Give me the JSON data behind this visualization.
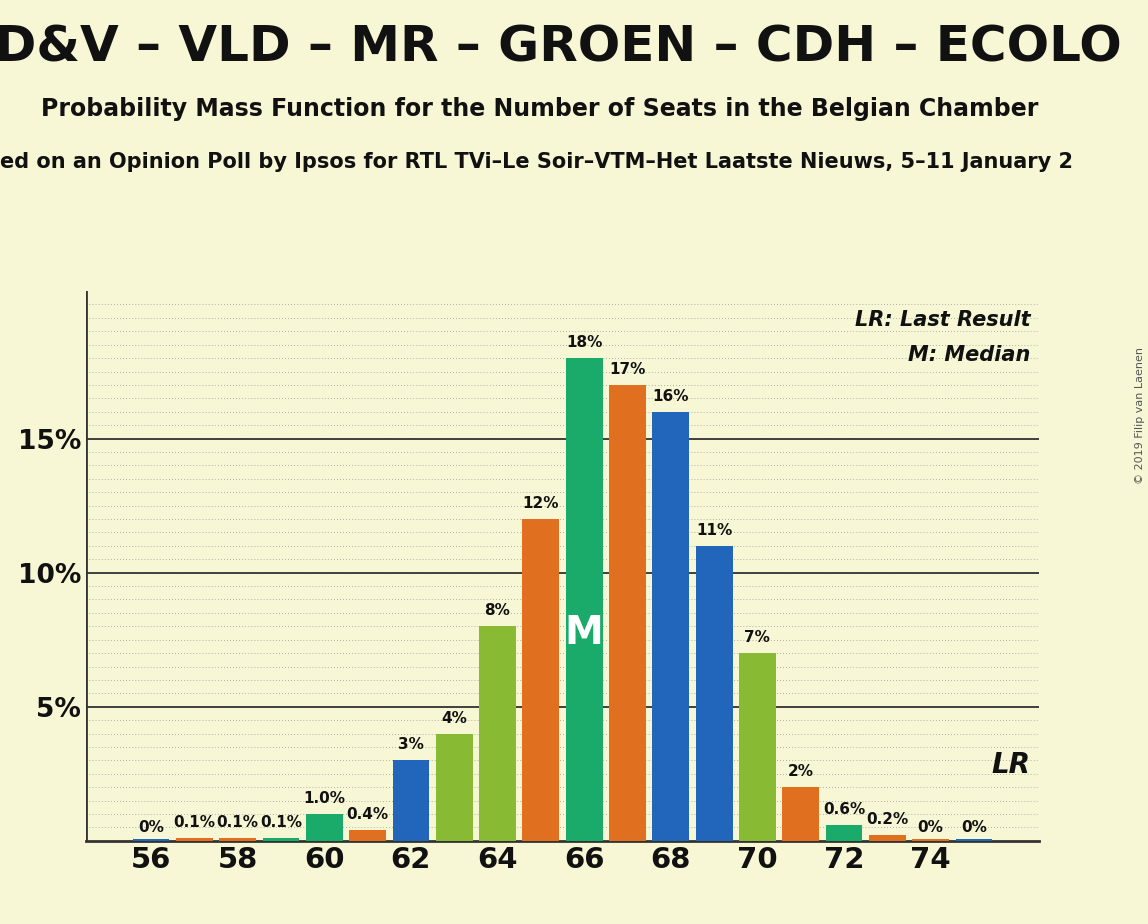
{
  "title": "CD&V – VLD – MR – GROEN – CDH – ECOLO",
  "subtitle": "Probability Mass Function for the Number of Seats in the Belgian Chamber",
  "subtitle2": "ed on an Opinion Poll by Ipsos for RTL TVi–Le Soir–VTM–Het Laatste Nieuws, 5–11 January 2",
  "copyright": "© 2019 Filip van Laenen",
  "background_color": "#f7f6d5",
  "bar_data": [
    {
      "x": 56,
      "pct": 0.05,
      "color": "#2266bb",
      "label": "0%"
    },
    {
      "x": 57,
      "pct": 0.1,
      "color": "#e07020",
      "label": "0.1%"
    },
    {
      "x": 58,
      "pct": 0.1,
      "color": "#e07020",
      "label": "0.1%"
    },
    {
      "x": 59,
      "pct": 0.1,
      "color": "#1aaa6a",
      "label": "0.1%"
    },
    {
      "x": 60,
      "pct": 1.0,
      "color": "#1aaa6a",
      "label": "1.0%"
    },
    {
      "x": 61,
      "pct": 0.4,
      "color": "#e07020",
      "label": "0.4%"
    },
    {
      "x": 62,
      "pct": 3.0,
      "color": "#2266bb",
      "label": "3%"
    },
    {
      "x": 63,
      "pct": 4.0,
      "color": "#88bb33",
      "label": "4%"
    },
    {
      "x": 64,
      "pct": 8.0,
      "color": "#88bb33",
      "label": "8%"
    },
    {
      "x": 65,
      "pct": 12.0,
      "color": "#e07020",
      "label": "12%"
    },
    {
      "x": 66,
      "pct": 18.0,
      "color": "#1aaa6a",
      "label": "18%"
    },
    {
      "x": 67,
      "pct": 17.0,
      "color": "#e07020",
      "label": "17%"
    },
    {
      "x": 68,
      "pct": 16.0,
      "color": "#2266bb",
      "label": "16%"
    },
    {
      "x": 69,
      "pct": 11.0,
      "color": "#2266bb",
      "label": "11%"
    },
    {
      "x": 70,
      "pct": 7.0,
      "color": "#88bb33",
      "label": "7%"
    },
    {
      "x": 71,
      "pct": 2.0,
      "color": "#e07020",
      "label": "2%"
    },
    {
      "x": 72,
      "pct": 0.6,
      "color": "#1aaa6a",
      "label": "0.6%"
    },
    {
      "x": 73,
      "pct": 0.2,
      "color": "#e07020",
      "label": "0.2%"
    },
    {
      "x": 74,
      "pct": 0.05,
      "color": "#e07020",
      "label": "0%"
    },
    {
      "x": 75,
      "pct": 0.05,
      "color": "#2266bb",
      "label": "0%"
    }
  ],
  "median_x": 66,
  "lr_x": 71,
  "xticks": [
    56,
    58,
    60,
    62,
    64,
    66,
    68,
    70,
    72,
    74
  ],
  "ylim": [
    0,
    20.5
  ],
  "ytick_vals": [
    5,
    10,
    15
  ],
  "ytick_labels": [
    "5%",
    "10%",
    "15%"
  ],
  "bar_width": 0.85,
  "title_fontsize": 36,
  "subtitle_fontsize": 17,
  "subtitle2_fontsize": 15,
  "label_fontsize": 11,
  "legend_lr": "LR: Last Result",
  "legend_m": "M: Median",
  "median_label": "M",
  "lr_label": "LR"
}
